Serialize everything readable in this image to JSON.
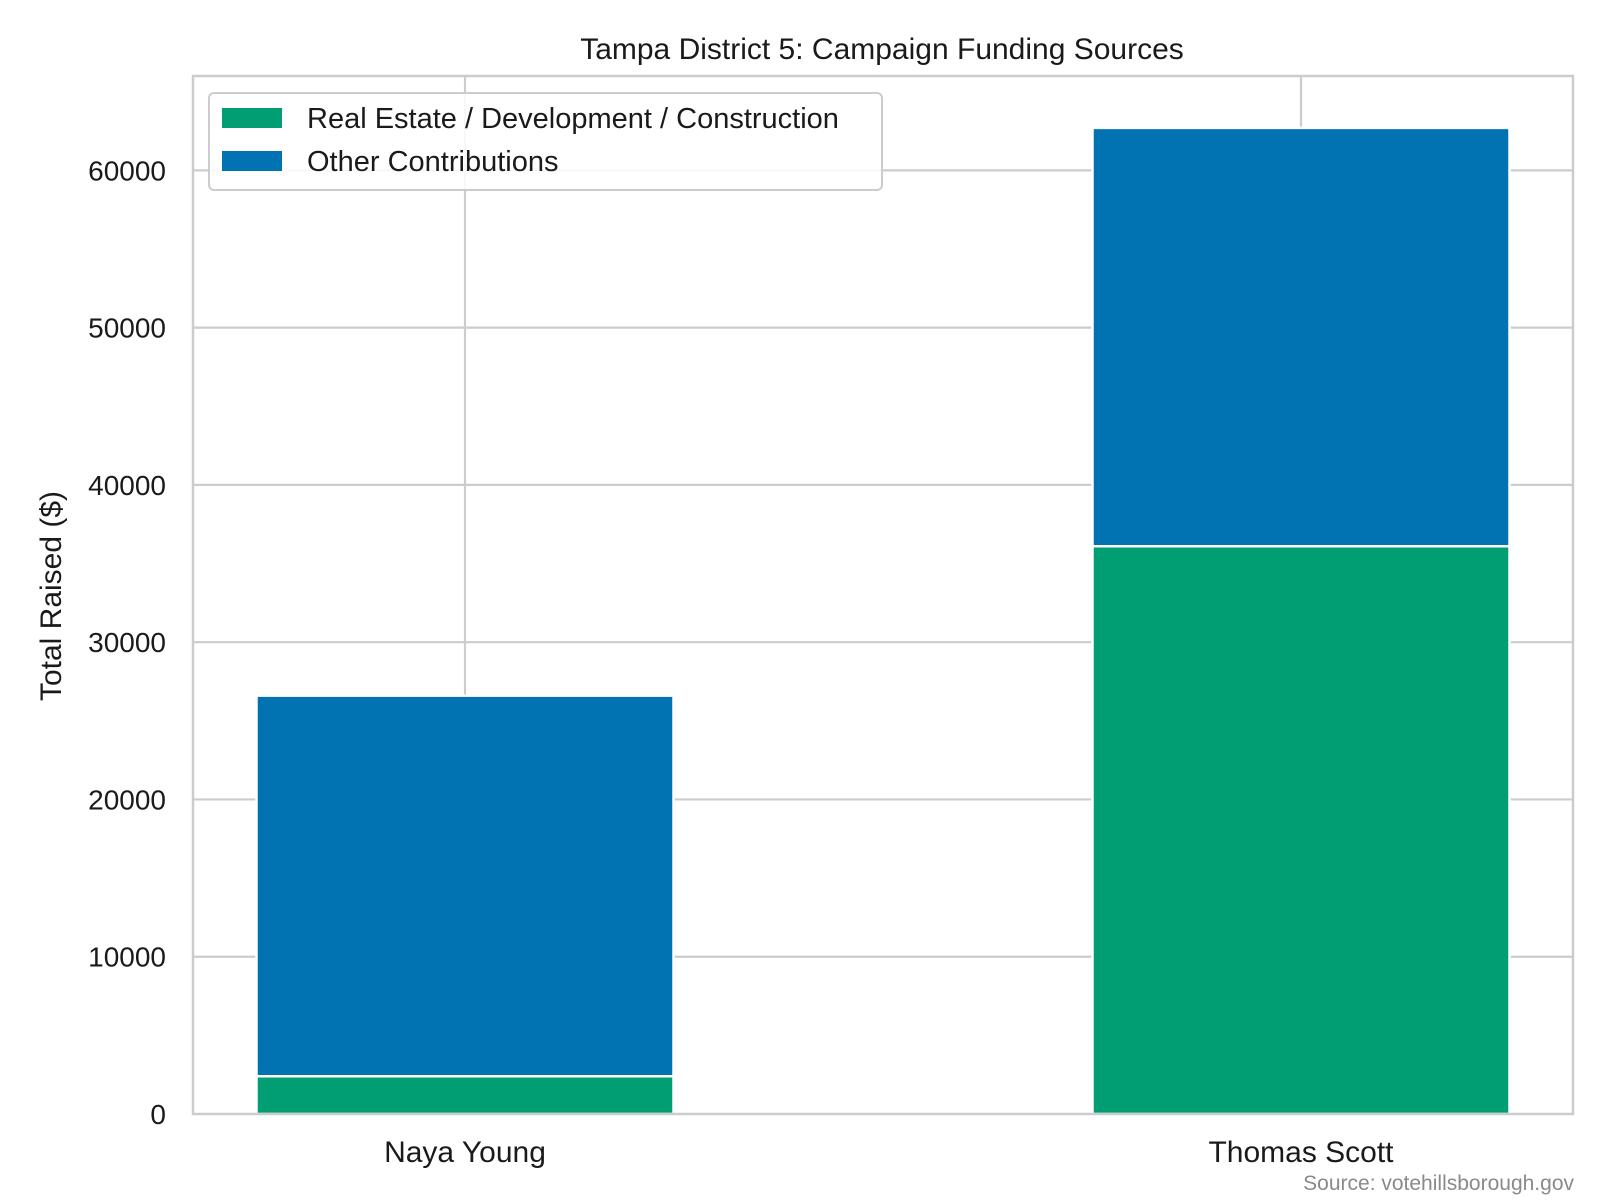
{
  "chart_data": {
    "type": "bar",
    "stacked": true,
    "title": "Tampa District 5: Campaign Funding Sources",
    "xlabel": "",
    "ylabel": "Total Raised ($)",
    "categories": [
      "Naya Young",
      "Thomas Scott"
    ],
    "series": [
      {
        "name": "Real Estate / Development / Construction",
        "values": [
          2400,
          36100
        ],
        "color": "#029e73"
      },
      {
        "name": "Other Contributions",
        "values": [
          24200,
          26600
        ],
        "color": "#0173b2"
      }
    ],
    "ylim": [
      0,
      66000
    ],
    "yticks": [
      0,
      10000,
      20000,
      30000,
      40000,
      50000,
      60000
    ],
    "grid": true,
    "legend_position": "upper-left",
    "source_note": "Source: votehillsborough.gov"
  }
}
